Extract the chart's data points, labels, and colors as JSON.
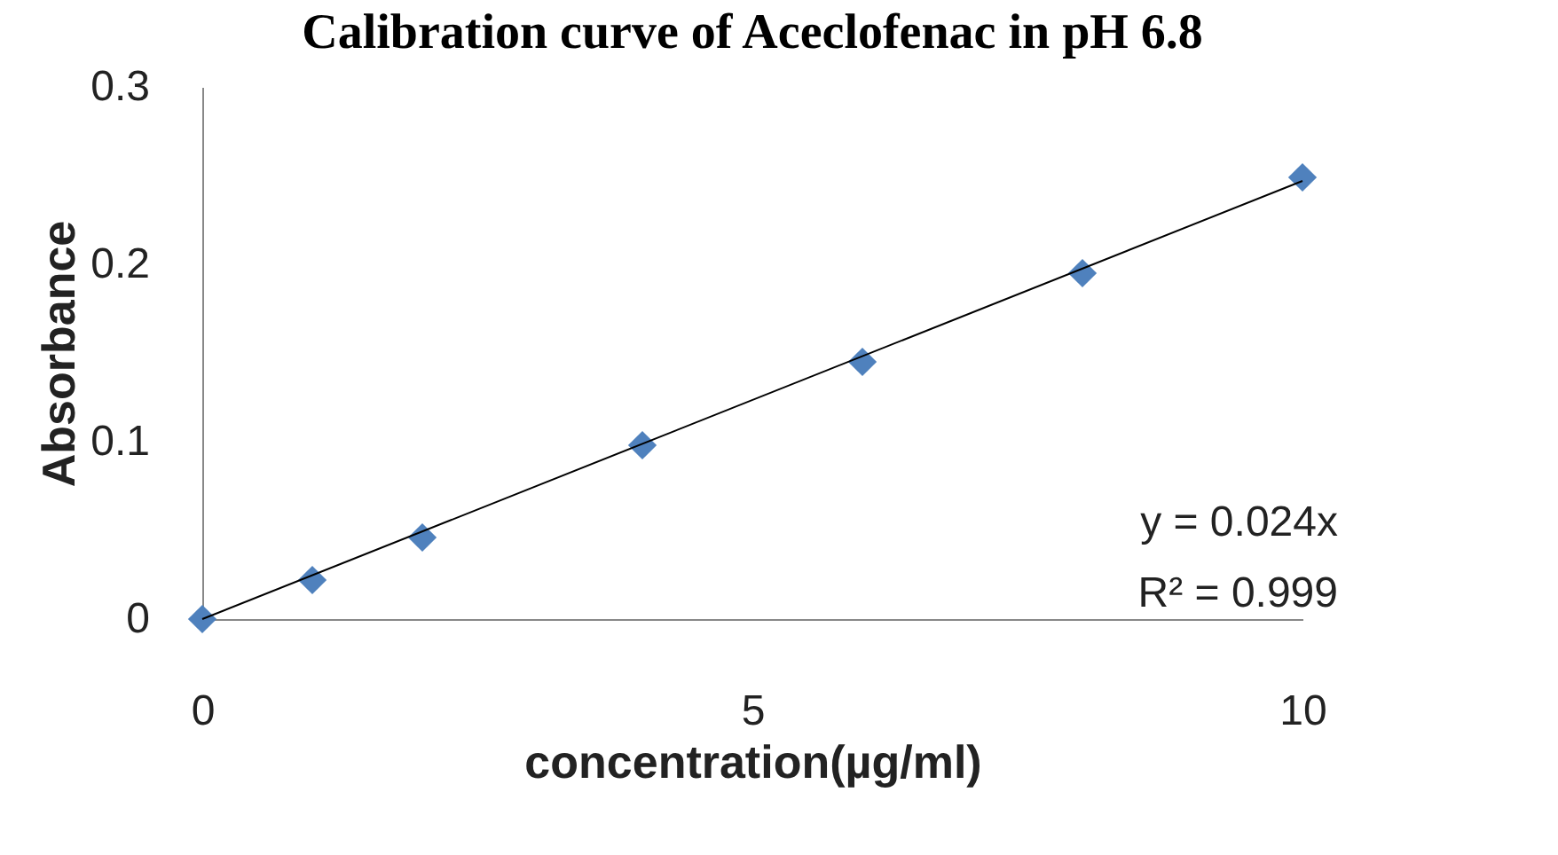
{
  "chart_data": {
    "type": "scatter",
    "title": "Calibration curve of Aceclofenac in pH 6.8",
    "xlabel": "concentration(µg/ml)",
    "ylabel": "Absorbance",
    "x": [
      0,
      1,
      2,
      4,
      6,
      8,
      10
    ],
    "series": [
      {
        "color": "#4f81bd",
        "values": [
          0,
          0.022,
          0.046,
          0.098,
          0.145,
          0.195,
          0.249
        ],
        "marker": "diamond"
      },
      {
        "type": "line",
        "color": "#000000",
        "x": [
          0,
          10
        ],
        "values": [
          0,
          0.247
        ],
        "marker": "none",
        "line_style": "solid"
      }
    ],
    "xlim": [
      0,
      10
    ],
    "xticks": [
      0,
      5,
      10
    ],
    "ylim": [
      0,
      0.3
    ],
    "yticks": [
      0,
      0.1,
      0.2,
      0.3
    ],
    "annotations": [
      "y = 0.024x",
      "R² = 0.999"
    ]
  }
}
